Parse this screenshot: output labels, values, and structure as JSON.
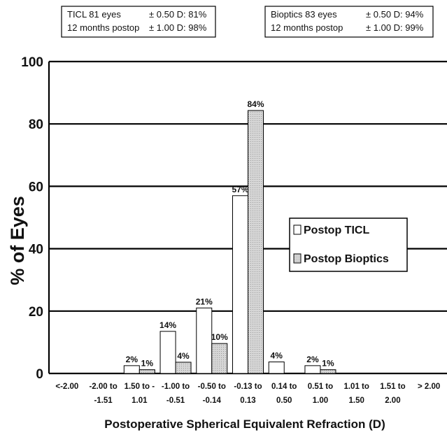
{
  "chart_data": {
    "type": "bar",
    "categories": [
      [
        "<-2.00",
        ""
      ],
      [
        "-2.00 to",
        "-1.51"
      ],
      [
        "1.50 to -",
        "1.01"
      ],
      [
        "-1.00 to",
        "-0.51"
      ],
      [
        "-0.50 to",
        "-0.14"
      ],
      [
        "-0.13 to",
        "0.13"
      ],
      [
        "0.14 to",
        "0.50"
      ],
      [
        "0.51 to",
        "1.00"
      ],
      [
        "1.01 to",
        "1.50"
      ],
      [
        "1.51 to",
        "2.00"
      ],
      [
        "> 2.00",
        ""
      ]
    ],
    "series": [
      {
        "name": "Postop TICL",
        "values": [
          0,
          0,
          2.5,
          13.5,
          21,
          57,
          3.7,
          2.5,
          0,
          0,
          0
        ],
        "labels": [
          "",
          "",
          "2%",
          "14%",
          "21%",
          "57%",
          "4%",
          "2%",
          "",
          "",
          ""
        ]
      },
      {
        "name": "Postop Bioptics",
        "values": [
          0,
          0,
          1.2,
          3.6,
          9.6,
          84.3,
          0,
          1.2,
          0,
          0,
          0
        ],
        "labels": [
          "",
          "",
          "1%",
          "4%",
          "10%",
          "84%",
          "",
          "1%",
          "",
          "",
          ""
        ]
      }
    ],
    "xlabel": "Postoperative Spherical Equivalent Refraction (D)",
    "ylabel": "% of Eyes",
    "yticks": [
      0,
      20,
      40,
      60,
      80,
      100
    ],
    "ylim": [
      0,
      100
    ],
    "grid": "horizontal",
    "legend_position": "right-middle",
    "colors": {
      "ticl": "#ffffff",
      "bioptics": "#d2d2d2",
      "stroke": "#000000"
    }
  },
  "boxes": [
    {
      "line1_left": "TICL 81 eyes",
      "line1_right": "± 0.50 D: 81%",
      "line2_left": "12 months postop",
      "line2_right": "± 1.00 D: 98%"
    },
    {
      "line1_left": "Bioptics 83 eyes",
      "line1_right": "± 0.50 D: 94%",
      "line2_left": "12 months postop",
      "line2_right": "± 1.00 D: 99%"
    }
  ]
}
